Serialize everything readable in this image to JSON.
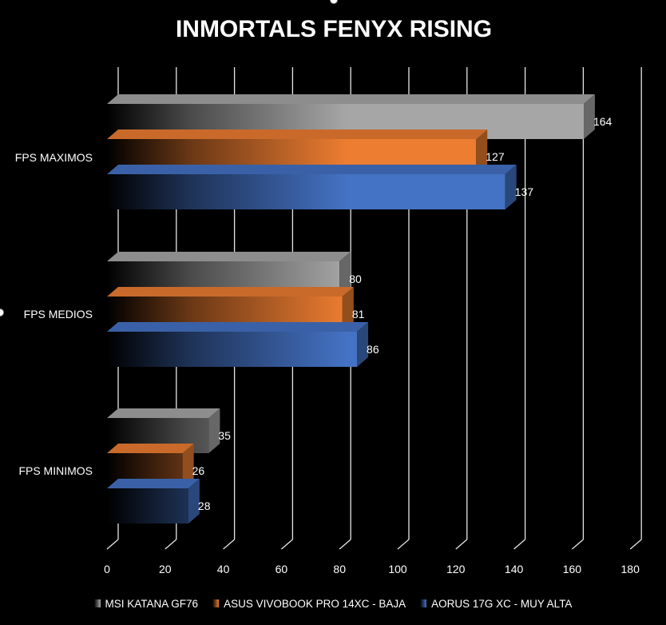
{
  "chart_data": {
    "type": "bar",
    "orientation": "horizontal",
    "title": "INMORTALS FENYX RISING",
    "categories": [
      "FPS MAXIMOS",
      "FPS MEDIOS",
      "FPS MINIMOS"
    ],
    "series": [
      {
        "name": "MSI KATANA GF76",
        "values": [
          164,
          80,
          35
        ],
        "color": "#a6a6a6"
      },
      {
        "name": "ASUS VIVOBOOK PRO 14XC - BAJA",
        "values": [
          127,
          81,
          26
        ],
        "color": "#ed7d31"
      },
      {
        "name": "AORUS 17G XC - MUY ALTA",
        "values": [
          137,
          86,
          28
        ],
        "color": "#4472c4"
      }
    ],
    "xlim": [
      0,
      180
    ],
    "xticks": [
      0,
      20,
      40,
      60,
      80,
      100,
      120,
      140,
      160,
      180
    ],
    "grid": true,
    "legend_position": "bottom"
  }
}
